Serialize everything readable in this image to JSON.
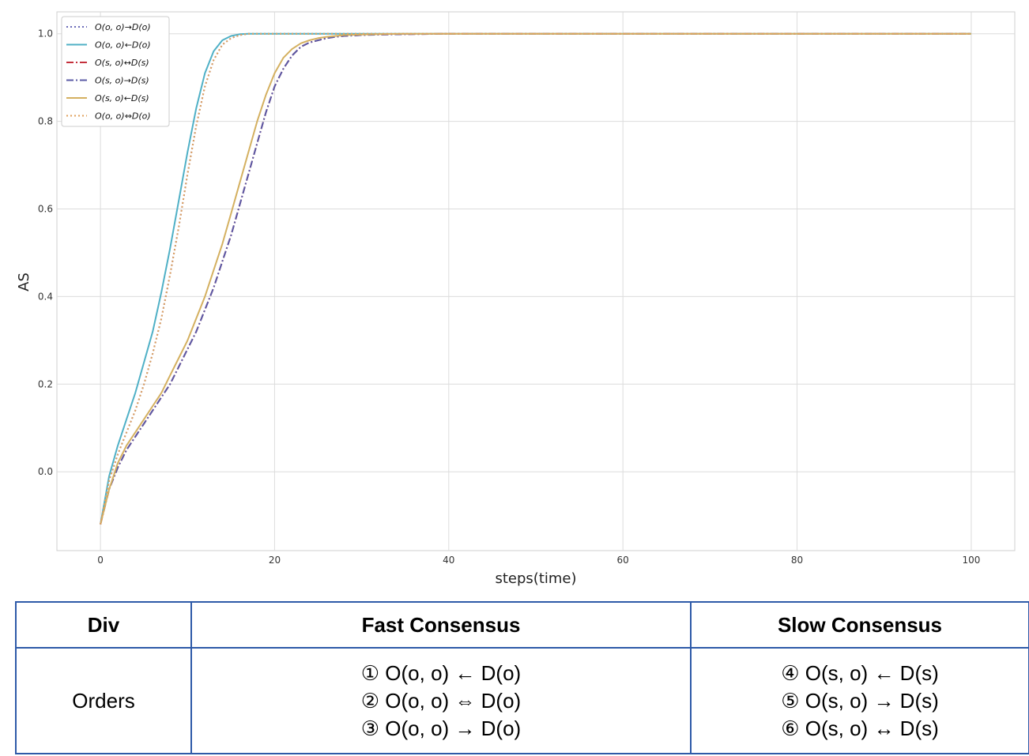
{
  "chart_data": {
    "type": "line",
    "title": "",
    "xlabel": "steps(time)",
    "ylabel": "AS",
    "xlim": [
      -5,
      105
    ],
    "ylim": [
      -0.18,
      1.05
    ],
    "xticks": [
      0,
      20,
      40,
      60,
      80,
      100
    ],
    "xtick_labels": [
      "0",
      "20",
      "40",
      "60",
      "80",
      "100"
    ],
    "yticks": [
      0.0,
      0.2,
      0.4,
      0.6,
      0.8,
      1.0
    ],
    "ytick_labels": [
      "0.0",
      "0.2",
      "0.4",
      "0.6",
      "0.8",
      "1.0"
    ],
    "grid": true,
    "legend_position": "top-left",
    "x": [
      0,
      1,
      2,
      3,
      4,
      5,
      6,
      7,
      8,
      9,
      10,
      11,
      12,
      13,
      14,
      15,
      16,
      17,
      18,
      19,
      20,
      21,
      22,
      23,
      24,
      25,
      26,
      27,
      28,
      30,
      32,
      35,
      40,
      50,
      60,
      70,
      80,
      90,
      100
    ],
    "series": [
      {
        "name": "O(o, o)→D(o)",
        "color": "#6a6ab8",
        "dash": "dotted",
        "values": [
          -0.12,
          -0.02,
          0.04,
          0.09,
          0.14,
          0.2,
          0.27,
          0.35,
          0.45,
          0.56,
          0.68,
          0.79,
          0.88,
          0.94,
          0.975,
          0.99,
          0.997,
          1.0,
          1.0,
          1.0,
          1.0,
          1.0,
          1.0,
          1.0,
          1.0,
          1.0,
          1.0,
          1.0,
          1.0,
          1.0,
          1.0,
          1.0,
          1.0,
          1.0,
          1.0,
          1.0,
          1.0,
          1.0,
          1.0
        ]
      },
      {
        "name": "O(o, o)←D(o)",
        "color": "#4fb0c6",
        "dash": "solid",
        "values": [
          -0.12,
          -0.01,
          0.06,
          0.12,
          0.18,
          0.25,
          0.32,
          0.41,
          0.51,
          0.62,
          0.73,
          0.83,
          0.91,
          0.96,
          0.985,
          0.995,
          0.999,
          1.0,
          1.0,
          1.0,
          1.0,
          1.0,
          1.0,
          1.0,
          1.0,
          1.0,
          1.0,
          1.0,
          1.0,
          1.0,
          1.0,
          1.0,
          1.0,
          1.0,
          1.0,
          1.0,
          1.0,
          1.0,
          1.0
        ]
      },
      {
        "name": "O(s, o)↔D(s)",
        "color": "#c4303c",
        "dash": "dashdot",
        "values": [
          -0.12,
          -0.04,
          0.01,
          0.05,
          0.08,
          0.11,
          0.14,
          0.17,
          0.2,
          0.24,
          0.28,
          0.32,
          0.37,
          0.42,
          0.48,
          0.54,
          0.61,
          0.68,
          0.75,
          0.82,
          0.88,
          0.92,
          0.95,
          0.97,
          0.98,
          0.985,
          0.99,
          0.993,
          0.995,
          0.997,
          0.998,
          0.999,
          1.0,
          1.0,
          1.0,
          1.0,
          1.0,
          1.0,
          1.0
        ]
      },
      {
        "name": "O(s, o)→D(s)",
        "color": "#5a5aa6",
        "dash": "dashdot",
        "values": [
          -0.12,
          -0.04,
          0.01,
          0.05,
          0.08,
          0.11,
          0.14,
          0.17,
          0.2,
          0.24,
          0.28,
          0.32,
          0.37,
          0.42,
          0.48,
          0.54,
          0.61,
          0.68,
          0.75,
          0.82,
          0.88,
          0.92,
          0.95,
          0.97,
          0.98,
          0.985,
          0.99,
          0.993,
          0.995,
          0.997,
          0.998,
          0.999,
          1.0,
          1.0,
          1.0,
          1.0,
          1.0,
          1.0,
          1.0
        ]
      },
      {
        "name": "O(s, o)←D(s)",
        "color": "#d4b060",
        "dash": "solid",
        "values": [
          -0.12,
          -0.04,
          0.02,
          0.06,
          0.09,
          0.12,
          0.15,
          0.18,
          0.22,
          0.26,
          0.3,
          0.35,
          0.4,
          0.46,
          0.52,
          0.59,
          0.66,
          0.73,
          0.8,
          0.86,
          0.91,
          0.945,
          0.965,
          0.978,
          0.985,
          0.99,
          0.993,
          0.995,
          0.997,
          0.998,
          0.999,
          1.0,
          1.0,
          1.0,
          1.0,
          1.0,
          1.0,
          1.0,
          1.0
        ]
      },
      {
        "name": "O(o, o)⇔D(o)",
        "color": "#e0a15c",
        "dash": "dotted",
        "values": [
          -0.12,
          -0.02,
          0.04,
          0.09,
          0.14,
          0.2,
          0.27,
          0.35,
          0.45,
          0.56,
          0.68,
          0.79,
          0.88,
          0.94,
          0.975,
          0.99,
          0.997,
          1.0,
          1.0,
          1.0,
          1.0,
          1.0,
          1.0,
          1.0,
          1.0,
          1.0,
          1.0,
          1.0,
          1.0,
          1.0,
          1.0,
          1.0,
          1.0,
          1.0,
          1.0,
          1.0,
          1.0,
          1.0,
          1.0
        ]
      }
    ]
  },
  "table": {
    "headers": [
      "Div",
      "Fast Consensus",
      "Slow Consensus"
    ],
    "row_label": "Orders",
    "fast": [
      "① O(o, o) ← D(o)",
      "② O(o, o) ⇔ D(o)",
      "③ O(o, o) → D(o)"
    ],
    "slow": [
      "④ O(s, o) ← D(s)",
      "⑤ O(s, o) → D(s)",
      "⑥ O(s, o) ↔ D(s)"
    ]
  },
  "colors": {
    "grid": "#dcdcdc",
    "table_border": "#2e5aa8",
    "legend_border": "#cccccc"
  }
}
